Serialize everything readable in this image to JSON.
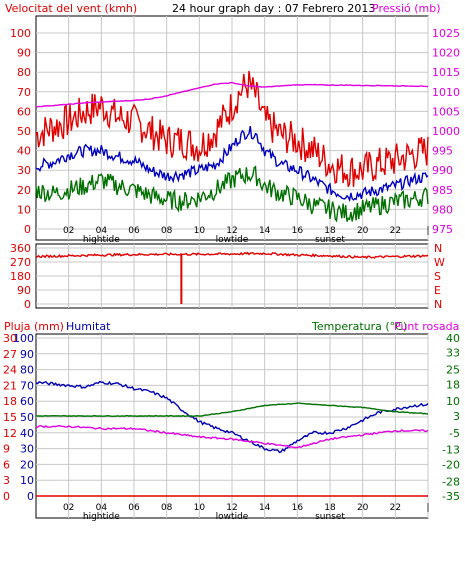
{
  "header": {
    "wind_label": "Velocitat del vent (kmh)",
    "title": "24 hour graph day : 07 Febrero 2013",
    "pressure_label": "Pressió (mb)"
  },
  "colors": {
    "wind_gust": "#e00000",
    "wind_avg": "#0000c0",
    "wind_min": "#007000",
    "pressure": "#e000e0",
    "direction": "#e00000",
    "rain": "#e00000",
    "humidity": "#0000b0",
    "temperature": "#007000",
    "dewpoint": "#e000e0",
    "grid": "#c8c8c8"
  },
  "axis_hours": [
    "02",
    "04",
    "06",
    "08",
    "10",
    "12",
    "14",
    "16",
    "18",
    "20",
    "22",
    "|"
  ],
  "tide_labels": [
    {
      "hour": "04",
      "text": "hightide"
    },
    {
      "hour": "12",
      "text": "lowtide"
    },
    {
      "hour": "18",
      "text": "sunset"
    }
  ],
  "chart_data": [
    {
      "type": "line",
      "title": "24 hour graph day : 07 Febrero 2013",
      "ylabel": "Velocitat del vent (kmh)",
      "y2label": "Pressió (mb)",
      "xlim": [
        0,
        24
      ],
      "ylim": [
        0,
        100
      ],
      "y_ticks": [
        0,
        10,
        20,
        30,
        40,
        50,
        60,
        70,
        80,
        90,
        100
      ],
      "ylim_right": [
        975,
        1025
      ],
      "y_ticks_right": [
        975,
        980,
        985,
        990,
        995,
        1000,
        1005,
        1010,
        1015,
        1020,
        1025
      ],
      "series": [
        {
          "name": "Velocitat del vent (kmh)",
          "x": [
            0,
            1,
            2,
            3,
            4,
            5,
            6,
            7,
            8,
            9,
            10,
            11,
            12,
            12.5,
            13,
            13.5,
            14,
            15,
            16,
            17,
            18,
            19,
            20,
            21,
            22,
            23,
            24
          ],
          "values": [
            48,
            52,
            55,
            60,
            63,
            57,
            55,
            50,
            45,
            45,
            42,
            50,
            63,
            70,
            74,
            67,
            55,
            48,
            45,
            40,
            33,
            30,
            30,
            33,
            35,
            38,
            40
          ]
        },
        {
          "name": "",
          "x": [
            0,
            1,
            2,
            3,
            4,
            5,
            6,
            7,
            8,
            9,
            10,
            11,
            12,
            12.5,
            13,
            13.5,
            14,
            15,
            16,
            17,
            18,
            19,
            20,
            21,
            22,
            23,
            24
          ],
          "values": [
            32,
            34,
            38,
            40,
            40,
            37,
            35,
            30,
            27,
            28,
            30,
            33,
            42,
            47,
            50,
            48,
            40,
            33,
            30,
            25,
            20,
            17,
            18,
            20,
            22,
            25,
            27
          ]
        },
        {
          "name": "",
          "x": [
            0,
            1,
            2,
            3,
            4,
            5,
            6,
            7,
            8,
            9,
            10,
            11,
            12,
            12.5,
            13,
            13.5,
            14,
            15,
            16,
            17,
            18,
            19,
            20,
            21,
            22,
            23,
            24
          ],
          "values": [
            20,
            18,
            20,
            22,
            25,
            22,
            20,
            17,
            15,
            14,
            16,
            20,
            25,
            27,
            28,
            27,
            22,
            18,
            16,
            12,
            10,
            8,
            10,
            12,
            14,
            15,
            17
          ]
        },
        {
          "name": "Pressió (mb)",
          "x": [
            0,
            1,
            2,
            3,
            4,
            5,
            6,
            7,
            8,
            9,
            10,
            11,
            12,
            13,
            14,
            15,
            16,
            17,
            18,
            19,
            20,
            21,
            22,
            23,
            24
          ],
          "values": [
            1006.2,
            1006.5,
            1006.8,
            1007.2,
            1007.4,
            1007.6,
            1007.8,
            1008.2,
            1009,
            1010,
            1011,
            1012,
            1012.3,
            1011.5,
            1011.2,
            1011.5,
            1011.8,
            1011.8,
            1011.7,
            1011.7,
            1011.6,
            1011.6,
            1011.5,
            1011.5,
            1011.3
          ]
        }
      ]
    },
    {
      "type": "line",
      "xlim": [
        0,
        24
      ],
      "ylim": [
        0,
        360
      ],
      "y_ticks": [
        0,
        90,
        180,
        270,
        360
      ],
      "y_ticks_right": [
        "N",
        "E",
        "S",
        "W",
        "N"
      ],
      "series": [
        {
          "name": "",
          "x": [
            0,
            2,
            4,
            6,
            8,
            10,
            12,
            14,
            16,
            18,
            20,
            22,
            24
          ],
          "values": [
            305,
            310,
            315,
            318,
            320,
            320,
            322,
            325,
            315,
            310,
            300,
            305,
            310
          ]
        }
      ],
      "spike": {
        "x": 8.9,
        "from": 320,
        "to": 0
      }
    },
    {
      "type": "line",
      "xlim": [
        0,
        24
      ],
      "ylabel": "Pluja (mm)",
      "ylabel_2": "Humitat",
      "y2label": "Temperatura (°C)",
      "y2label_2": "Punt rosada",
      "ylim_rain": [
        0,
        30
      ],
      "y_ticks_rain": [
        0,
        3,
        6,
        9,
        12,
        15,
        18,
        21,
        24,
        27,
        30
      ],
      "ylim_humidity": [
        0,
        100
      ],
      "y_ticks_humidity": [
        0,
        10,
        20,
        30,
        40,
        50,
        60,
        70,
        80,
        90,
        100
      ],
      "ylim_right": [
        -35,
        40
      ],
      "y_ticks_right": [
        -35,
        -28,
        -20,
        -13,
        -5,
        3,
        10,
        18,
        25,
        33,
        40
      ],
      "series": [
        {
          "name": "Humitat",
          "x": [
            0,
            1,
            2,
            3,
            4,
            5,
            6,
            7,
            8,
            9,
            10,
            11,
            12,
            13,
            14,
            15,
            16,
            17,
            18,
            19,
            20,
            21,
            22,
            23,
            24
          ],
          "values": [
            72,
            71,
            70,
            69,
            72,
            71,
            68,
            66,
            62,
            54,
            47,
            43,
            40,
            35,
            30,
            28,
            35,
            40,
            40,
            43,
            48,
            53,
            55,
            57,
            58
          ]
        },
        {
          "name": "Pluja (mm)",
          "x": [
            0,
            24
          ],
          "values": [
            0,
            0
          ]
        },
        {
          "name": "Temperatura (°C)",
          "x": [
            0,
            2,
            4,
            6,
            8,
            10,
            12,
            14,
            16,
            18,
            20,
            22,
            24
          ],
          "values": [
            3,
            3,
            3,
            3,
            3,
            3,
            5,
            8,
            9,
            8,
            7,
            5,
            4
          ]
        },
        {
          "name": "Punt rosada",
          "x": [
            0,
            2,
            4,
            6,
            8,
            10,
            12,
            14,
            16,
            18,
            20,
            22,
            24
          ],
          "values": [
            -2,
            -2,
            -3,
            -3,
            -5,
            -7,
            -8,
            -10,
            -12,
            -8,
            -6,
            -4,
            -4
          ]
        }
      ]
    }
  ]
}
